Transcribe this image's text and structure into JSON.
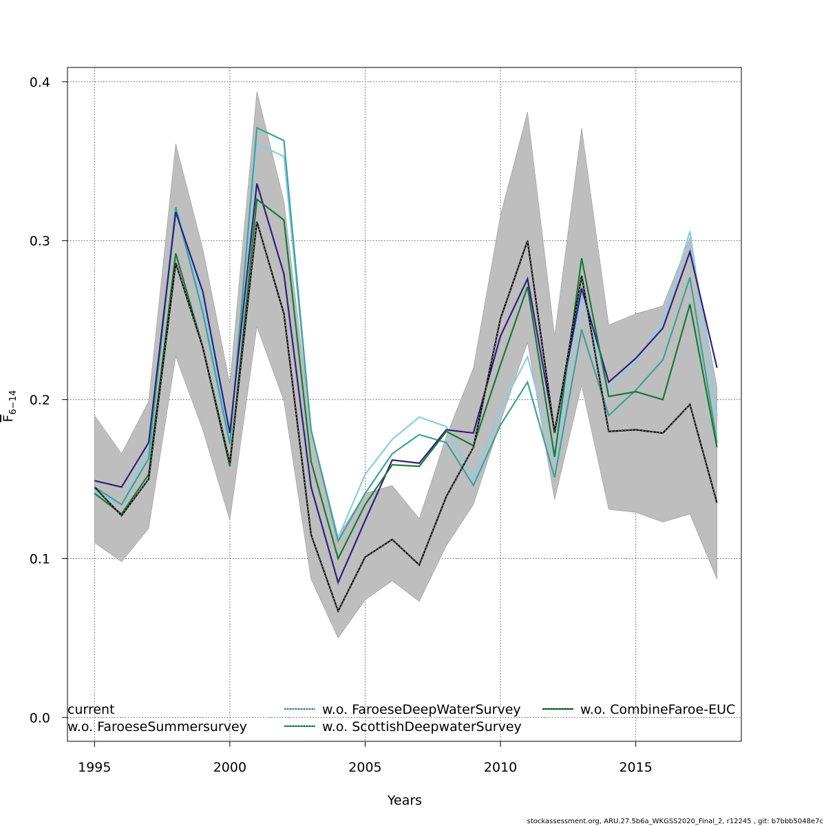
{
  "chart_data": {
    "type": "line",
    "xlabel": "Years",
    "ylabel": {
      "main": "F",
      "sub": "6−14"
    },
    "xlim": [
      1994,
      2018.9
    ],
    "ylim": [
      -0.015,
      0.409
    ],
    "xticks": [
      1995,
      2000,
      2005,
      2010,
      2015
    ],
    "yticks": [
      0.0,
      0.1,
      0.2,
      0.3,
      0.4
    ],
    "ytick_labels": [
      "0.0",
      "0.1",
      "0.2",
      "0.3",
      "0.4"
    ],
    "grid": true,
    "legend_placement": "bottom",
    "x": [
      1995,
      1996,
      1997,
      1998,
      1999,
      2000,
      2001,
      2002,
      2003,
      2004,
      2005,
      2006,
      2007,
      2008,
      2009,
      2010,
      2011,
      2012,
      2013,
      2014,
      2015,
      2016,
      2017,
      2018
    ],
    "confidence_band": {
      "color": "#bebebe",
      "lower": [
        0.11,
        0.098,
        0.119,
        0.227,
        0.181,
        0.124,
        0.246,
        0.199,
        0.087,
        0.05,
        0.074,
        0.086,
        0.073,
        0.108,
        0.134,
        0.186,
        0.236,
        0.137,
        0.209,
        0.131,
        0.129,
        0.123,
        0.128,
        0.087
      ],
      "upper": [
        0.19,
        0.166,
        0.199,
        0.361,
        0.295,
        0.21,
        0.394,
        0.325,
        0.182,
        0.114,
        0.141,
        0.146,
        0.125,
        0.177,
        0.22,
        0.316,
        0.381,
        0.24,
        0.371,
        0.247,
        0.254,
        0.259,
        0.302,
        0.208
      ]
    },
    "series": [
      {
        "name": "current",
        "color": "#000000",
        "dashed": true,
        "values": [
          0.145,
          0.127,
          0.15,
          0.286,
          0.233,
          0.16,
          0.312,
          0.254,
          0.115,
          0.067,
          0.101,
          0.112,
          0.096,
          0.139,
          0.17,
          0.251,
          0.3,
          0.179,
          0.278,
          0.18,
          0.181,
          0.179,
          0.197,
          0.135
        ]
      },
      {
        "name": "w.o. FaroeseSummersurvey",
        "color": "#2e1e81",
        "dashed": false,
        "values": [
          0.149,
          0.145,
          0.173,
          0.318,
          0.268,
          0.179,
          0.336,
          0.279,
          0.145,
          0.085,
          0.124,
          0.162,
          0.16,
          0.181,
          0.179,
          0.24,
          0.276,
          0.18,
          0.27,
          0.211,
          0.226,
          0.245,
          0.293,
          0.22
        ]
      },
      {
        "name": "w.o. FaroeseDeepWaterSurvey",
        "color": "#87ceeb",
        "dashed": false,
        "values": [
          0.142,
          0.134,
          0.168,
          0.322,
          0.262,
          0.176,
          0.361,
          0.353,
          0.181,
          0.113,
          0.153,
          0.175,
          0.189,
          0.183,
          0.15,
          0.194,
          0.227,
          0.162,
          0.265,
          0.205,
          0.224,
          0.248,
          0.306,
          0.19
        ]
      },
      {
        "name": "w.o. ScottishDeepwaterSurvey",
        "color": "#3aa39a",
        "dashed": false,
        "values": [
          0.145,
          0.134,
          0.163,
          0.321,
          0.255,
          0.172,
          0.371,
          0.363,
          0.181,
          0.111,
          0.141,
          0.166,
          0.178,
          0.173,
          0.146,
          0.184,
          0.211,
          0.151,
          0.244,
          0.19,
          0.206,
          0.225,
          0.277,
          0.173
        ]
      },
      {
        "name": "w.o. CombineFaroe-EUC",
        "color": "#157a36",
        "dashed": false,
        "values": [
          0.141,
          0.128,
          0.153,
          0.292,
          0.233,
          0.158,
          0.326,
          0.313,
          0.161,
          0.1,
          0.134,
          0.159,
          0.158,
          0.18,
          0.171,
          0.222,
          0.271,
          0.164,
          0.289,
          0.202,
          0.205,
          0.2,
          0.26,
          0.17
        ]
      }
    ]
  },
  "footer": "stockassessment.org, ARU.27.5b6a_WKGSS2020_Final_2, r12245 , git: b7bbb5048e7c"
}
